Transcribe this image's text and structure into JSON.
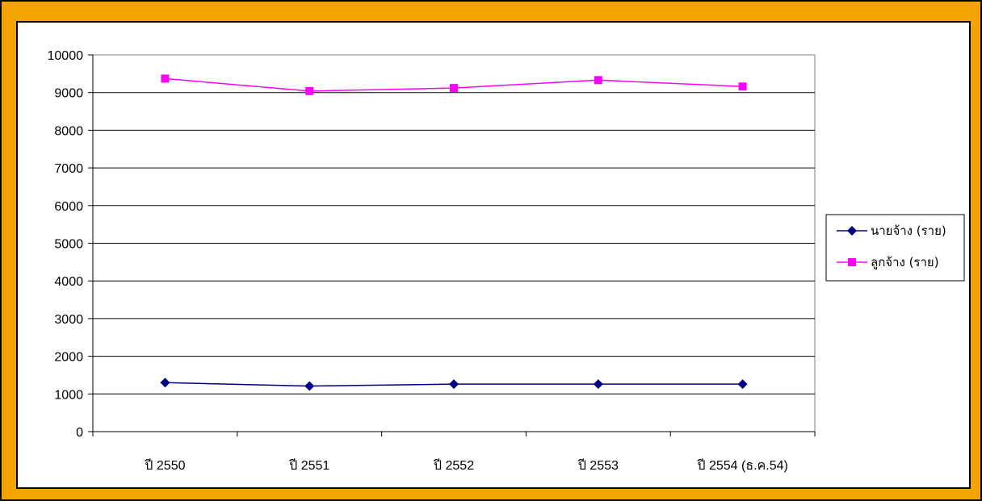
{
  "colors": {
    "frame": "#f5a300",
    "employer_series": "#000080",
    "employee_series": "#ff00ff"
  },
  "chart_data": {
    "type": "line",
    "title": "",
    "xlabel": "",
    "ylabel": "",
    "categories": [
      "ปี 2550",
      "ปี 2551",
      "ปี 2552",
      "ปี 2553",
      "ปี 2554 (ธ.ค.54)"
    ],
    "ylim": [
      0,
      10000
    ],
    "yticks": [
      0,
      1000,
      2000,
      3000,
      4000,
      5000,
      6000,
      7000,
      8000,
      9000,
      10000
    ],
    "grid": "horizontal",
    "legend_position": "right",
    "series": [
      {
        "name": "นายจ้าง (ราย)",
        "color": "#000080",
        "marker": "diamond",
        "values": [
          1300,
          1210,
          1260,
          1260,
          1260
        ]
      },
      {
        "name": "ลูกจ้าง (ราย)",
        "color": "#ff00ff",
        "marker": "square",
        "values": [
          9370,
          9040,
          9120,
          9330,
          9160
        ]
      }
    ]
  }
}
